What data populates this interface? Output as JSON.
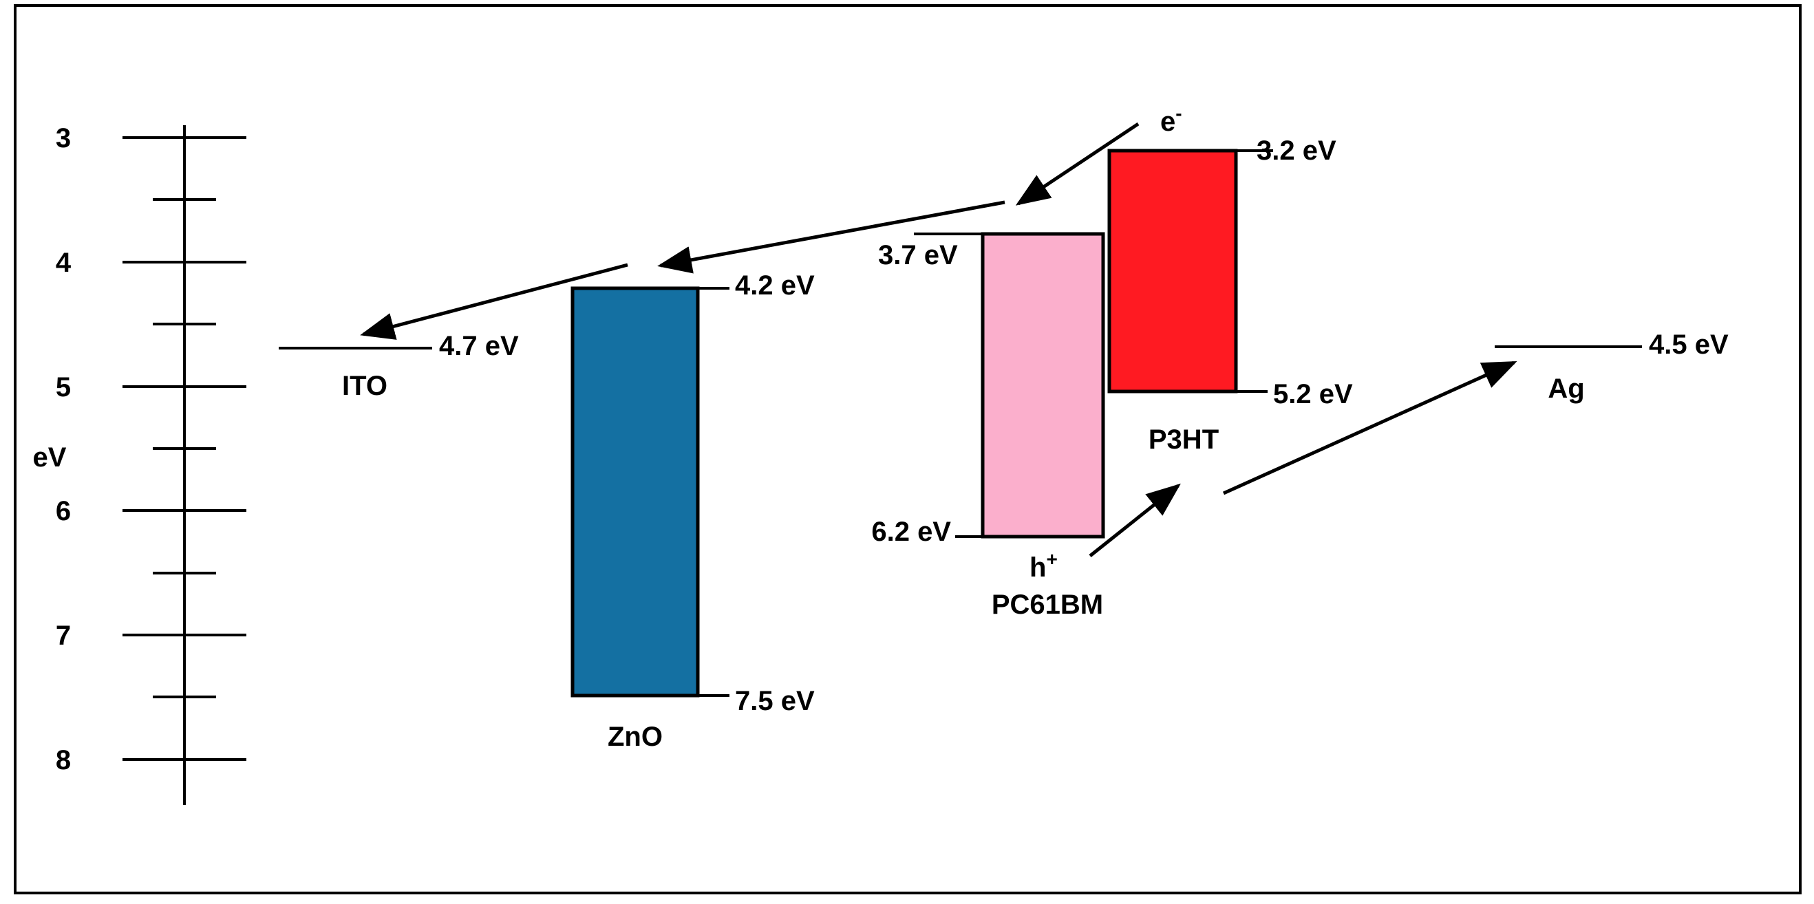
{
  "diagram": {
    "axis": {
      "unit_label": "eV",
      "ticks": [
        "3",
        "4",
        "5",
        "6",
        "7",
        "8"
      ]
    },
    "materials": [
      {
        "id": "ito",
        "name": "ITO",
        "level": "4.7 eV"
      },
      {
        "id": "zno",
        "name": "ZnO",
        "top": "4.2 eV",
        "bottom": "7.5 eV",
        "color": "#1470A2"
      },
      {
        "id": "pcbm",
        "name": "PC61BM",
        "top": "3.7 eV",
        "bottom": "6.2 eV",
        "color": "#FBAFCC"
      },
      {
        "id": "p3ht",
        "name": "P3HT",
        "top": "3.2 eV",
        "bottom": "5.2 eV",
        "color": "#FF1A22"
      },
      {
        "id": "ag",
        "name": "Ag",
        "level": "4.5 eV"
      }
    ],
    "carriers": {
      "electron": {
        "base": "e",
        "sup": "-"
      },
      "hole": {
        "base": "h",
        "sup": "+"
      }
    }
  }
}
